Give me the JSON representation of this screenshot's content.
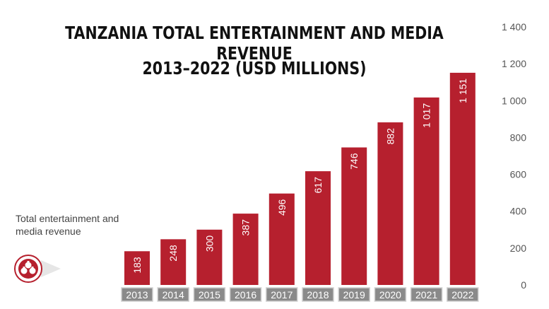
{
  "chart_data": {
    "type": "bar",
    "title_line1": "TANZANIA TOTAL ENTERTAINMENT AND MEDIA REVENUE",
    "title_line2": "2013–2022 (USD MILLIONS)",
    "categories": [
      "2013",
      "2014",
      "2015",
      "2016",
      "2017",
      "2018",
      "2019",
      "2020",
      "2021",
      "2022"
    ],
    "values": [
      183,
      248,
      300,
      387,
      496,
      617,
      746,
      882,
      1017,
      1151
    ],
    "value_labels": [
      "183",
      "248",
      "300",
      "387",
      "496",
      "617",
      "746",
      "882",
      "1 017",
      "1 151"
    ],
    "series_name": "Total entertainment and media revenue",
    "ylim": [
      0,
      1400
    ],
    "yticks": [
      0,
      200,
      400,
      600,
      800,
      1000,
      1200,
      1400
    ],
    "ytick_labels": [
      "0",
      "200",
      "400",
      "600",
      "800",
      "1 000",
      "1 200",
      "1 400"
    ],
    "y_axis_position": "right",
    "grid": false,
    "bar_color": "#b6202e",
    "category_box_color": "#8a8a8a"
  },
  "legend": {
    "label": "Total entertainment and media revenue",
    "icon": "money-bags-icon"
  }
}
